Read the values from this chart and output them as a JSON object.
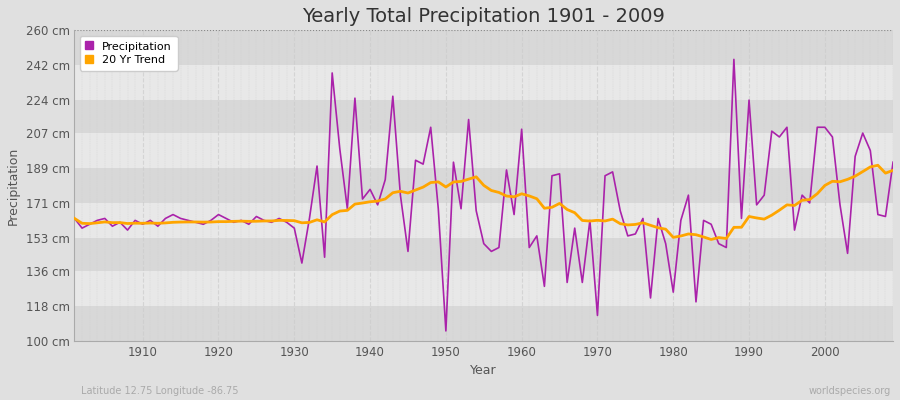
{
  "title": "Yearly Total Precipitation 1901 - 2009",
  "xlabel": "Year",
  "ylabel": "Precipitation",
  "lat_label": "Latitude 12.75 Longitude -86.75",
  "source_label": "worldspecies.org",
  "ylim": [
    100,
    260
  ],
  "ytick_vals": [
    100,
    118,
    136,
    153,
    171,
    189,
    207,
    224,
    242,
    260
  ],
  "ytick_labels": [
    "100 cm",
    "118 cm",
    "136 cm",
    "153 cm",
    "171 cm",
    "189 cm",
    "207 cm",
    "224 cm",
    "242 cm",
    "260 cm"
  ],
  "years": [
    1901,
    1902,
    1903,
    1904,
    1905,
    1906,
    1907,
    1908,
    1909,
    1910,
    1911,
    1912,
    1913,
    1914,
    1915,
    1916,
    1917,
    1918,
    1919,
    1920,
    1921,
    1922,
    1923,
    1924,
    1925,
    1926,
    1927,
    1928,
    1929,
    1930,
    1931,
    1932,
    1933,
    1934,
    1935,
    1936,
    1937,
    1938,
    1939,
    1940,
    1941,
    1942,
    1943,
    1944,
    1945,
    1946,
    1947,
    1948,
    1949,
    1950,
    1951,
    1952,
    1953,
    1954,
    1955,
    1956,
    1957,
    1958,
    1959,
    1960,
    1961,
    1962,
    1963,
    1964,
    1965,
    1966,
    1967,
    1968,
    1969,
    1970,
    1971,
    1972,
    1973,
    1974,
    1975,
    1976,
    1977,
    1978,
    1979,
    1980,
    1981,
    1982,
    1983,
    1984,
    1985,
    1986,
    1987,
    1988,
    1989,
    1990,
    1991,
    1992,
    1993,
    1994,
    1995,
    1996,
    1997,
    1998,
    1999,
    2000,
    2001,
    2002,
    2003,
    2004,
    2005,
    2006,
    2007,
    2008,
    2009
  ],
  "precip": [
    163,
    158,
    160,
    162,
    163,
    159,
    161,
    157,
    162,
    160,
    162,
    159,
    163,
    165,
    163,
    162,
    161,
    160,
    162,
    165,
    163,
    161,
    162,
    160,
    164,
    162,
    161,
    163,
    161,
    158,
    140,
    163,
    190,
    143,
    238,
    199,
    168,
    225,
    173,
    178,
    170,
    183,
    226,
    175,
    146,
    193,
    191,
    210,
    168,
    105,
    192,
    168,
    214,
    167,
    150,
    146,
    148,
    188,
    165,
    209,
    148,
    154,
    128,
    185,
    186,
    130,
    158,
    130,
    162,
    113,
    185,
    187,
    167,
    154,
    155,
    163,
    122,
    163,
    150,
    125,
    162,
    175,
    120,
    162,
    160,
    150,
    148,
    245,
    163,
    224,
    170,
    175,
    208,
    205,
    210,
    157,
    175,
    171,
    210,
    210,
    205,
    170,
    145,
    195,
    207,
    198,
    165,
    164,
    192
  ],
  "precip_color": "#aa22aa",
  "trend_color": "#FFA500",
  "fig_bg_color": "#e0e0e0",
  "plot_bg_color": "#e8e8e8",
  "band_color_dark": "#d8d8d8",
  "band_color_light": "#e8e8e8",
  "grid_v_color": "#cccccc",
  "title_fontsize": 14,
  "label_fontsize": 9,
  "tick_fontsize": 8.5
}
